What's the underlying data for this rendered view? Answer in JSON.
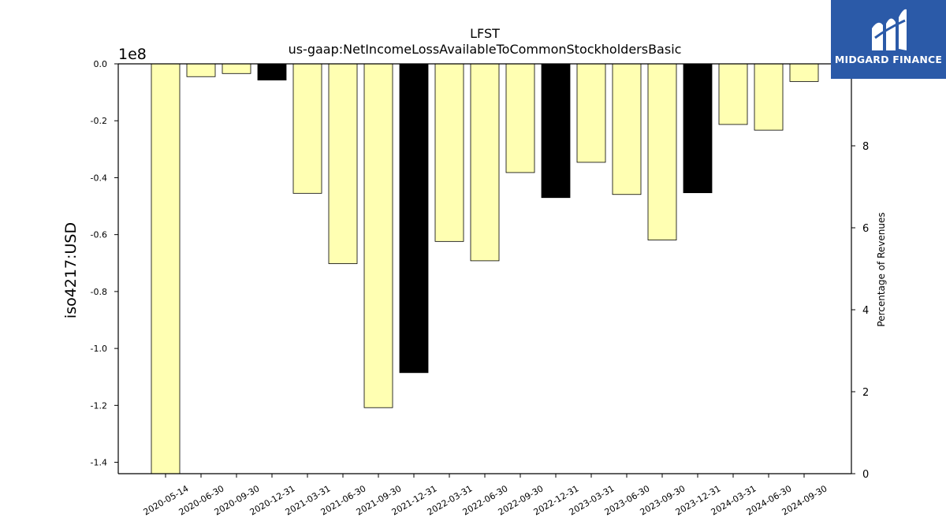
{
  "chart_data": {
    "type": "bar",
    "title": "LFST",
    "subtitle": "us-gaap:NetIncomeLossAvailableToCommonStockholdersBasic",
    "ylabel": "iso4217:USD",
    "y_offset_label": "1e8",
    "y2label": "Percentage of Revenues",
    "ylim": [
      -1.44,
      0
    ],
    "y2lim": [
      0,
      10
    ],
    "yticks": [
      "0.0",
      "-0.2",
      "-0.4",
      "-0.6",
      "-0.8",
      "-1.0",
      "-1.2",
      "-1.4"
    ],
    "y2ticks": [
      "0",
      "2",
      "4",
      "6",
      "8"
    ],
    "grid": false,
    "categories": [
      "2020-05-14",
      "2020-06-30",
      "2020-09-30",
      "2020-12-31",
      "2021-03-31",
      "2021-06-30",
      "2021-09-30",
      "2021-12-31",
      "2022-03-31",
      "2022-06-30",
      "2022-09-30",
      "2022-12-31",
      "2023-03-31",
      "2023-06-30",
      "2023-09-30",
      "2023-12-31",
      "2024-03-31",
      "2024-06-30",
      "2024-09-30"
    ],
    "values": [
      -1.44,
      -0.045,
      -0.034,
      -0.057,
      -0.455,
      -0.702,
      -1.208,
      -1.085,
      -0.624,
      -0.692,
      -0.382,
      -0.47,
      -0.346,
      -0.459,
      -0.619,
      -0.453,
      -0.213,
      -0.233,
      -0.062
    ],
    "bar_colors": [
      "#ffffb2",
      "#ffffb2",
      "#ffffb2",
      "#000000",
      "#ffffb2",
      "#ffffb2",
      "#ffffb2",
      "#000000",
      "#ffffb2",
      "#ffffb2",
      "#ffffb2",
      "#000000",
      "#ffffb2",
      "#ffffb2",
      "#ffffb2",
      "#000000",
      "#ffffb2",
      "#ffffb2",
      "#ffffb2"
    ]
  },
  "logo": {
    "text": "MIDGARD FINANCE",
    "color": "#2b5aa8"
  }
}
